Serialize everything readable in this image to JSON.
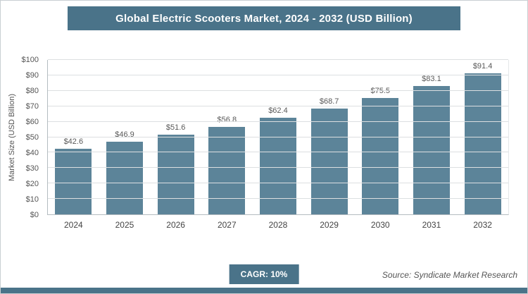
{
  "header": {
    "title": "Global Electric Scooters Market, 2024 - 2032 (USD Billion)"
  },
  "chart_data": {
    "type": "bar",
    "title": "Global Electric Scooters Market, 2024 - 2032 (USD Billion)",
    "categories": [
      "2024",
      "2025",
      "2026",
      "2027",
      "2028",
      "2029",
      "2030",
      "2031",
      "2032"
    ],
    "values": [
      42.6,
      46.9,
      51.6,
      56.8,
      62.4,
      68.7,
      75.5,
      83.1,
      91.4
    ],
    "value_labels": [
      "$42.6",
      "$46.9",
      "$51.6",
      "$56.8",
      "$62.4",
      "$68.7",
      "$75.5",
      "$83.1",
      "$91.4"
    ],
    "xlabel": "",
    "ylabel": "Market Size (USD Billion)",
    "ylim": [
      0,
      100
    ],
    "ytick_step": 10,
    "ytick_prefix": "$",
    "grid": true,
    "legend": false,
    "bar_color": "#5c8499"
  },
  "footer": {
    "cagr_label": "CAGR: 10%",
    "source": "Source: Syndicate Market Research"
  },
  "colors": {
    "accent": "#4a7389",
    "bar": "#5c8499",
    "gridline": "#dcdfe1",
    "label": "#595959"
  }
}
